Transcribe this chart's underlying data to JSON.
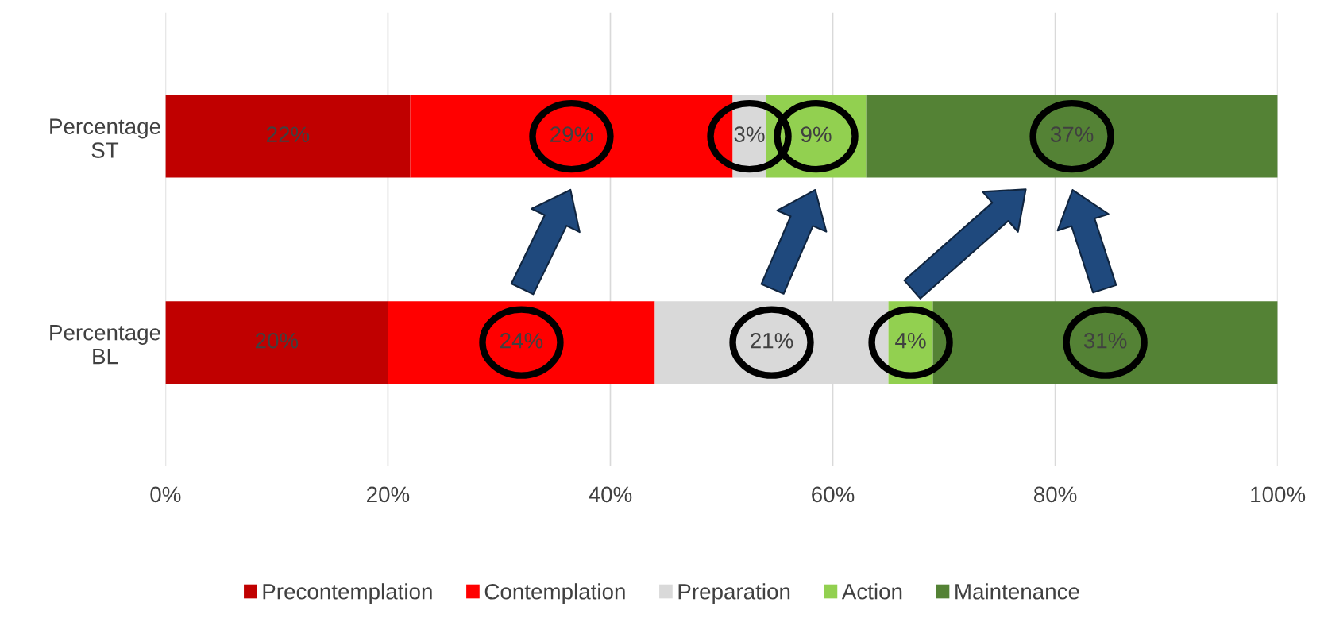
{
  "chart_data": {
    "type": "bar",
    "orientation": "horizontal",
    "stacked": true,
    "categories": [
      "Percentage\nST",
      "Percentage\nBL"
    ],
    "series": [
      {
        "name": "Precontemplation",
        "color": "#c00000",
        "values": [
          22,
          20
        ],
        "value_labels": [
          "22%",
          "20%"
        ]
      },
      {
        "name": "Contemplation",
        "color": "#ff0000",
        "values": [
          29,
          24
        ],
        "value_labels": [
          "29%",
          "24%"
        ]
      },
      {
        "name": "Preparation",
        "color": "#d9d9d9",
        "values": [
          3,
          21
        ],
        "value_labels": [
          "3%",
          "21%"
        ]
      },
      {
        "name": "Action",
        "color": "#92d050",
        "values": [
          9,
          4
        ],
        "value_labels": [
          "9%",
          "4%"
        ]
      },
      {
        "name": "Maintenance",
        "color": "#548235",
        "values": [
          37,
          31
        ],
        "value_labels": [
          "37%",
          "31%"
        ]
      }
    ],
    "xlim": [
      0,
      100
    ],
    "xticks": [
      {
        "value": 0,
        "label": "0%"
      },
      {
        "value": 20,
        "label": "20%"
      },
      {
        "value": 40,
        "label": "40%"
      },
      {
        "value": 60,
        "label": "60%"
      },
      {
        "value": 80,
        "label": "80%"
      },
      {
        "value": 100,
        "label": "100%"
      }
    ],
    "grid": "x",
    "legend": "bottom"
  }
}
